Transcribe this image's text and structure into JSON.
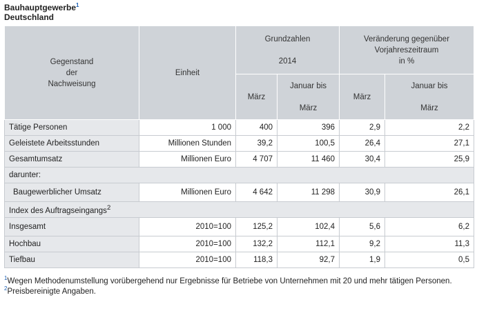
{
  "title": {
    "line1": "Bauhauptgewerbe",
    "line1_sup": "1",
    "line2": "Deutschland"
  },
  "header": {
    "gegenstand": [
      "Gegenstand",
      "der",
      "Nachweisung"
    ],
    "einheit": "Einheit",
    "grundzahlen": "Grundzahlen",
    "year": "2014",
    "veraenderung": [
      "Veränderung gegenüber",
      "Vorjahreszeitraum",
      "in %"
    ],
    "marz": "März",
    "januar": [
      "Januar bis",
      "März"
    ]
  },
  "rows": [
    {
      "label": "Tätige Personen",
      "unit": "1 000",
      "v1": "400",
      "v2": "396",
      "v3": "2,9",
      "v4": "2,2"
    },
    {
      "label": "Geleistete Arbeitsstunden",
      "unit": "Millionen Stunden",
      "v1": "39,2",
      "v2": "100,5",
      "v3": "26,4",
      "v4": "27,1"
    },
    {
      "label": "Gesamtumsatz",
      "unit": "Millionen Euro",
      "v1": "4 707",
      "v2": "11 460",
      "v3": "30,4",
      "v4": "25,9"
    },
    {
      "label": "darunter:"
    },
    {
      "label": "Baugewerblicher Umsatz",
      "unit": "Millionen Euro",
      "v1": "4 642",
      "v2": "11 298",
      "v3": "30,9",
      "v4": "26,1"
    },
    {
      "label": "Index des Auftragseingangs",
      "sup": "2"
    },
    {
      "label": "Insgesamt",
      "unit": "2010=100",
      "v1": "125,2",
      "v2": "102,4",
      "v3": "5,6",
      "v4": "6,2"
    },
    {
      "label": "Hochbau",
      "unit": "2010=100",
      "v1": "132,2",
      "v2": "112,1",
      "v3": "9,2",
      "v4": "11,3"
    },
    {
      "label": "Tiefbau",
      "unit": "2010=100",
      "v1": "118,3",
      "v2": "92,7",
      "v3": "1,9",
      "v4": "0,5"
    }
  ],
  "footnotes": [
    {
      "sup": "1",
      "text": "Wegen Methodenumstellung vorübergehend nur Ergebnisse für Betriebe von Unternehmen mit 20 und mehr tätigen Personen."
    },
    {
      "sup": "2",
      "text": "Preisbereinigte Angaben."
    }
  ]
}
